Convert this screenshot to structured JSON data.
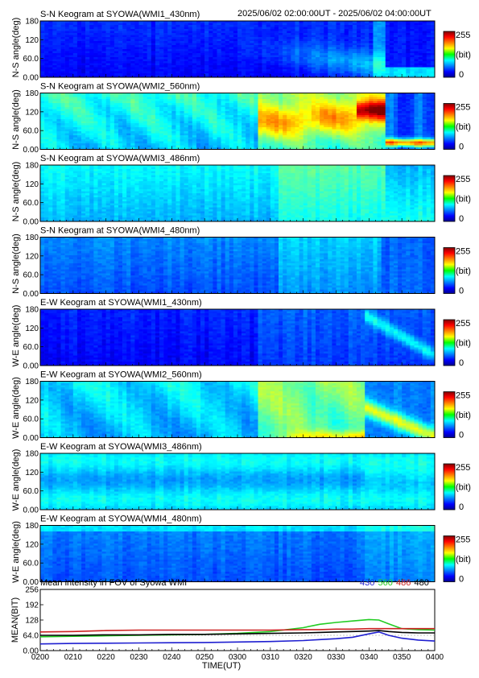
{
  "header": {
    "first_title": "S-N Keogram at SYOWA(WMI1_430nm)",
    "time_range": "2025/06/02 02:00:00UT - 2025/06/02 04:00:00UT"
  },
  "keograms": [
    {
      "title": "S-N Keogram at SYOWA(WMI1_430nm)",
      "ylabel": "N-S angle(deg)",
      "profile": "sn430"
    },
    {
      "title": "S-N Keogram at SYOWA(WMI2_560nm)",
      "ylabel": "N-S angle(deg)",
      "profile": "sn560"
    },
    {
      "title": "S-N Keogram at SYOWA(WMI3_486nm)",
      "ylabel": "N-S angle(deg)",
      "profile": "sn486"
    },
    {
      "title": "S-N Keogram at SYOWA(WMI4_480nm)",
      "ylabel": "N-S angle(deg)",
      "profile": "sn480"
    },
    {
      "title": "E-W Keogram at SYOWA(WMI1_430nm)",
      "ylabel": "W-E angle(deg)",
      "profile": "ew430"
    },
    {
      "title": "E-W Keogram at SYOWA(WMI2_560nm)",
      "ylabel": "W-E angle(deg)",
      "profile": "ew560"
    },
    {
      "title": "E-W Keogram at SYOWA(WMI3_486nm)",
      "ylabel": "W-E angle(deg)",
      "profile": "ew486"
    },
    {
      "title": "E-W Keogram at SYOWA(WMI4_480nm)",
      "ylabel": "W-E angle(deg)",
      "profile": "ew480"
    }
  ],
  "angle_ticks": [
    "0.00",
    "60.0",
    "120",
    "180"
  ],
  "angle_tick_values": [
    0,
    60,
    120,
    180
  ],
  "colorbar": {
    "max_label": "255",
    "unit_label": "(bit)",
    "min_label": "0",
    "range": [
      0,
      255
    ]
  },
  "colors": {
    "s430": "#1f1fd0",
    "s560": "#22cc22",
    "s486": "#cc2222",
    "s480": "#000000"
  },
  "chart_data": {
    "type": "line",
    "title": "Mean intensity in FOV of Syowa WMI",
    "xlabel": "TIME(UT)",
    "ylabel": "MEAN(BIT)",
    "x_ticks": [
      "0200",
      "0210",
      "0220",
      "0230",
      "0240",
      "0250",
      "0300",
      "0310",
      "0320",
      "0330",
      "0340",
      "0350",
      "0400"
    ],
    "x_tick_minutes": [
      0,
      10,
      20,
      30,
      40,
      50,
      60,
      70,
      80,
      90,
      100,
      110,
      120
    ],
    "y_ticks": [
      "0.00",
      "64.0",
      "128",
      "192",
      "256"
    ],
    "y_tick_values": [
      0,
      64,
      128,
      192,
      256
    ],
    "ylim": [
      0,
      256
    ],
    "xlim": [
      0,
      120
    ],
    "x": [
      0,
      10,
      20,
      30,
      40,
      50,
      60,
      70,
      80,
      85,
      90,
      95,
      100,
      103,
      106,
      110,
      115,
      120
    ],
    "series": [
      {
        "name": "430",
        "color": "#1f1fd0",
        "values": [
          28,
          30,
          31,
          32,
          33,
          34,
          36,
          38,
          42,
          46,
          50,
          56,
          70,
          78,
          64,
          52,
          44,
          40
        ]
      },
      {
        "name": "560",
        "color": "#22cc22",
        "values": [
          58,
          60,
          62,
          64,
          66,
          68,
          72,
          80,
          96,
          110,
          118,
          124,
          130,
          128,
          112,
          92,
          88,
          86
        ]
      },
      {
        "name": "486",
        "color": "#cc2222",
        "values": [
          78,
          80,
          84,
          86,
          86,
          86,
          86,
          86,
          88,
          88,
          90,
          90,
          92,
          92,
          92,
          92,
          92,
          92
        ]
      },
      {
        "name": "480",
        "color": "#000000",
        "values": [
          64,
          64,
          66,
          66,
          68,
          68,
          70,
          72,
          74,
          76,
          78,
          80,
          82,
          84,
          80,
          76,
          74,
          74
        ]
      }
    ]
  }
}
